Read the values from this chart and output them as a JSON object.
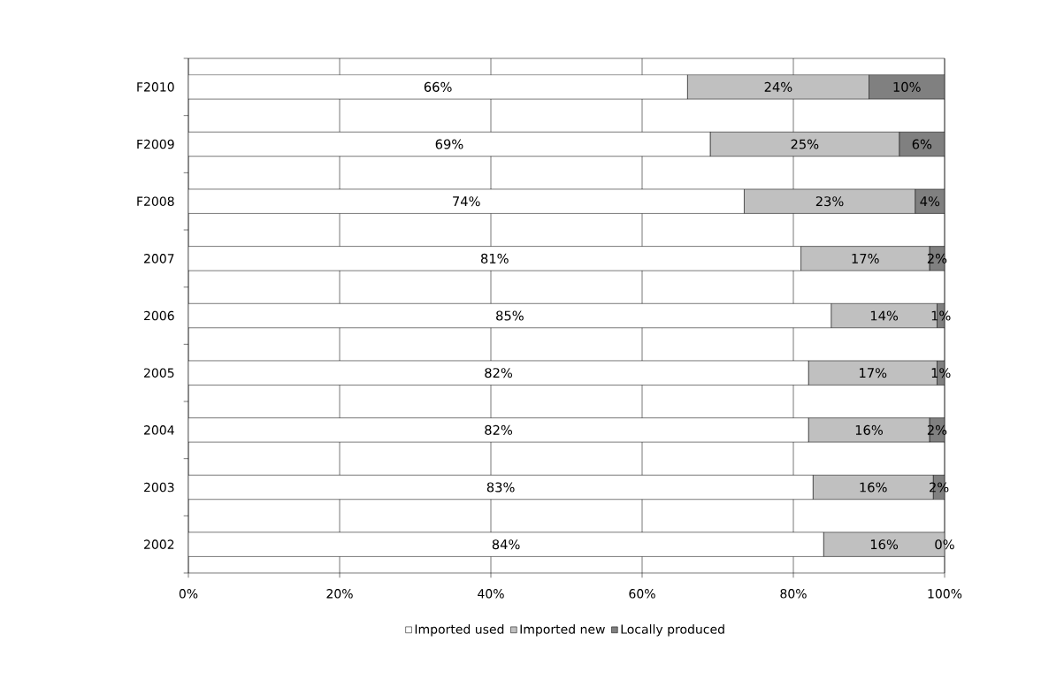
{
  "chart_data": {
    "type": "bar",
    "orientation": "horizontal",
    "stacked": true,
    "categories": [
      "F2010",
      "F2009",
      "F2008",
      "2007",
      "2006",
      "2005",
      "2004",
      "2003",
      "2002"
    ],
    "series": [
      {
        "name": "Imported used",
        "color": "#ffffff",
        "values": [
          66,
          69,
          73.5,
          81,
          85,
          82,
          82,
          82.6,
          84
        ],
        "value_labels": [
          "66%",
          "69%",
          "74%",
          "81%",
          "85%",
          "82%",
          "82%",
          "83%",
          "84%"
        ]
      },
      {
        "name": "Imported new",
        "color": "#c0c0c0",
        "values": [
          24,
          25,
          22.6,
          17,
          14,
          17,
          16,
          15.9,
          16
        ],
        "value_labels": [
          "24%",
          "25%",
          "23%",
          "17%",
          "14%",
          "17%",
          "16%",
          "16%",
          "16%"
        ]
      },
      {
        "name": "Locally produced",
        "color": "#808080",
        "values": [
          10,
          6,
          3.9,
          2,
          1,
          1,
          2,
          1.5,
          0
        ],
        "value_labels": [
          "10%",
          "6%",
          "4%",
          "2%",
          "1%",
          "1%",
          "2%",
          "2%",
          "0%"
        ]
      }
    ],
    "xlim": [
      0,
      100
    ],
    "xticks": [
      {
        "value": 0,
        "label": "0%"
      },
      {
        "value": 20,
        "label": "20%"
      },
      {
        "value": 40,
        "label": "40%"
      },
      {
        "value": 60,
        "label": "60%"
      },
      {
        "value": 80,
        "label": "80%"
      },
      {
        "value": 100,
        "label": "100%"
      }
    ],
    "grid": "x",
    "legend": "bottom"
  }
}
